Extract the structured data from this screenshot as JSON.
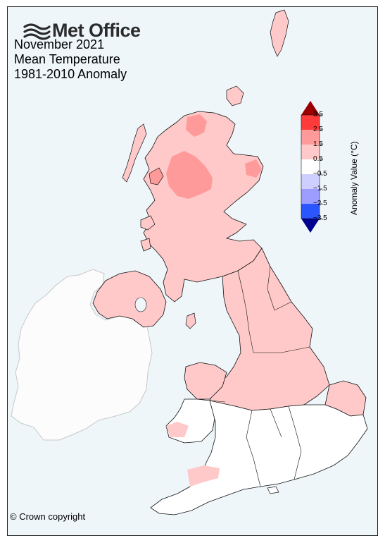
{
  "logo": {
    "text": "Met Office",
    "icon": "met-office-wave-icon"
  },
  "title": {
    "line1": "November 2021",
    "line2": "Mean Temperature",
    "line3": "1981-2010 Anomaly"
  },
  "colorbar": {
    "label": "Anomaly Value (°C)",
    "ticks": [
      "3.5",
      "2.5",
      "1.5",
      "0.5",
      "−0.5",
      "−1.5",
      "−2.5",
      "−3.5"
    ],
    "colors": {
      "above_3_5": "#9b0000",
      "2_5_to_3_5": "#ff3a3a",
      "1_5_to_2_5": "#ff9a9a",
      "0_5_to_1_5": "#ffc9c9",
      "neg0_5_to_0_5": "#ffffff",
      "neg1_5_to_neg0_5": "#cfcfff",
      "neg2_5_to_neg1_5": "#9d9dff",
      "neg3_5_to_neg2_5": "#2b55ff",
      "below_neg3_5": "#00008f"
    }
  },
  "copyright": "© Crown copyright",
  "map_colors": {
    "sea": "#eef6fa",
    "ireland": "#fcfcfc",
    "ireland_border": "#c8c8c8",
    "anomaly_high": "#ff9a9a",
    "anomaly_mid": "#ffc9c9",
    "anomaly_neutral": "#ffffff",
    "border": "#111111"
  }
}
